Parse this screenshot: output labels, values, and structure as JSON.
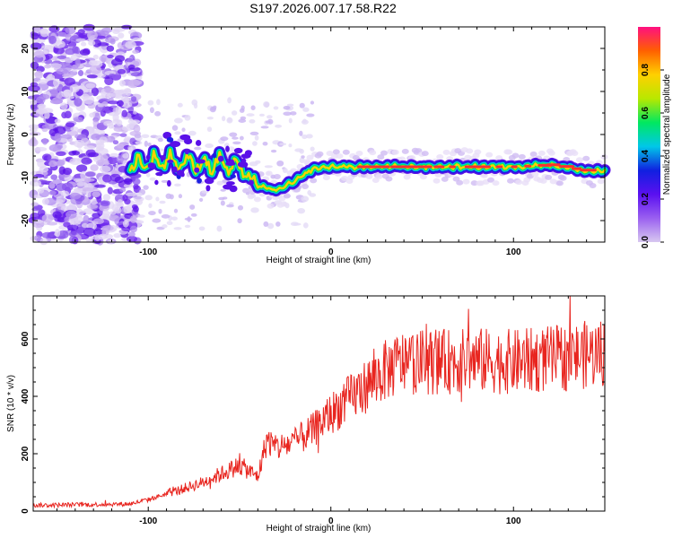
{
  "title": "S197.2026.007.17.58.R22",
  "chart_data": [
    {
      "type": "heatmap",
      "name": "spectrogram",
      "xlabel": "Height of straight line (km)",
      "ylabel": "Frequency (Hz)",
      "xlim": [
        -163,
        150
      ],
      "ylim": [
        -25,
        25
      ],
      "x_ticks": [
        -100,
        0,
        100
      ],
      "y_ticks": [
        20,
        10,
        0,
        -10,
        -20
      ],
      "colorbar": {
        "label": "Normalized spectral amplitude",
        "range": [
          0,
          1
        ],
        "ticks": [
          "0.0",
          "0.2",
          "0.4",
          "0.6",
          "0.8"
        ],
        "colors": [
          "#d8c8f0",
          "#9a60f0",
          "#5a10f0",
          "#1020e0",
          "#00c8e8",
          "#00e860",
          "#b8e800",
          "#ffd000",
          "#ff6000",
          "#ff1080"
        ]
      },
      "ridge": {
        "x": [
          -110,
          -100,
          -90,
          -80,
          -70,
          -60,
          -50,
          -40,
          -30,
          -20,
          -10,
          0,
          10,
          20,
          40,
          60,
          80,
          100,
          120,
          140,
          150
        ],
        "freq": [
          -7,
          -6.5,
          -6,
          -6.5,
          -7,
          -6.5,
          -8,
          -12,
          -13,
          -11,
          -8,
          -7.5,
          -7.5,
          -7.5,
          -7.5,
          -7.5,
          -7.5,
          -7.5,
          -7,
          -8.5,
          -8.5
        ]
      }
    },
    {
      "type": "line",
      "name": "snr",
      "xlabel": "Height of straight line (km)",
      "ylabel": "SNR (10 * v/v)",
      "xlim": [
        -163,
        150
      ],
      "ylim": [
        0,
        750
      ],
      "x_ticks": [
        -100,
        0,
        100
      ],
      "y_ticks": [
        0,
        200,
        400,
        600
      ],
      "color": "#e8251f",
      "trend": {
        "x": [
          -163,
          -110,
          -100,
          -90,
          -80,
          -70,
          -60,
          -50,
          -40,
          -35,
          -30,
          -20,
          -10,
          0,
          10,
          20,
          30,
          40,
          60,
          80,
          100,
          120,
          140,
          150
        ],
        "y": [
          20,
          25,
          40,
          60,
          80,
          100,
          130,
          160,
          120,
          250,
          220,
          240,
          280,
          340,
          390,
          440,
          490,
          520,
          520,
          525,
          520,
          530,
          545,
          555
        ]
      }
    }
  ]
}
